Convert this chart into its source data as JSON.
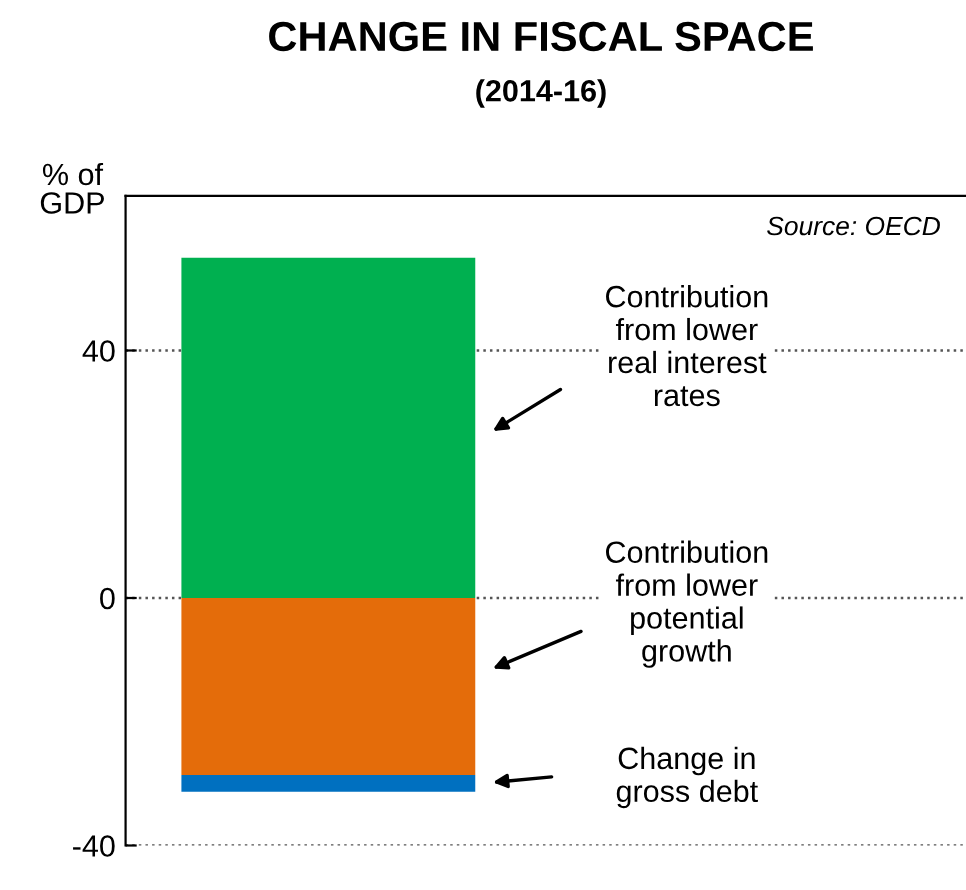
{
  "chart_data": {
    "type": "bar",
    "title": "CHANGE IN FISCAL SPACE",
    "subtitle": "(2014-16)",
    "ylabel": "% of\nGDP",
    "categories": [
      null
    ],
    "stacked": true,
    "series": [
      {
        "name": "Contribution\nfrom lower\nreal interest\nrates",
        "color": "#00b050",
        "values": [
          55
        ]
      },
      {
        "name": "Contribution\nfrom lower\npotential\ngrowth",
        "color": "#e46c0a",
        "values": [
          -28.6
        ]
      },
      {
        "name": "Change in\ngross debt",
        "color": "#0070c0",
        "values": [
          -2.7
        ]
      }
    ],
    "ylim": [
      -40,
      65
    ],
    "yticks": [
      -40,
      0,
      40
    ],
    "grid": "y",
    "legend": false,
    "annotations": [
      "Source: OECD"
    ]
  }
}
